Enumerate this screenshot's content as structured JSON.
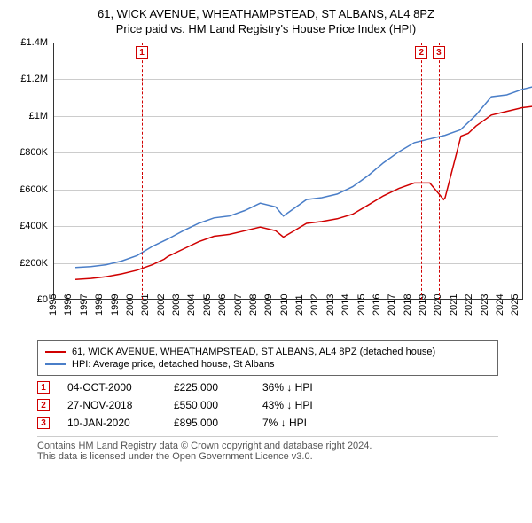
{
  "title": "61, WICK AVENUE, WHEATHAMPSTEAD, ST ALBANS, AL4 8PZ",
  "subtitle": "Price paid vs. HM Land Registry's House Price Index (HPI)",
  "chart": {
    "type": "line",
    "xlim": [
      1995,
      2025.5
    ],
    "ylim": [
      0,
      1400000
    ],
    "ytick_step": 200000,
    "ytick_labels": [
      "£0",
      "£200K",
      "£400K",
      "£600K",
      "£800K",
      "£1M",
      "£1.2M",
      "£1.4M"
    ],
    "xticks": [
      1995,
      1996,
      1997,
      1998,
      1999,
      2000,
      2001,
      2002,
      2003,
      2004,
      2005,
      2006,
      2007,
      2008,
      2009,
      2010,
      2011,
      2012,
      2013,
      2014,
      2015,
      2016,
      2017,
      2018,
      2019,
      2020,
      2021,
      2022,
      2023,
      2024,
      2025
    ],
    "grid_color": "#cccccc",
    "background_color": "#ffffff",
    "series": [
      {
        "name": "property",
        "label": "61, WICK AVENUE, WHEATHAMPSTEAD, ST ALBANS, AL4 8PZ (detached house)",
        "color": "#d00000",
        "line_width": 1.5,
        "points": [
          [
            1995,
            115000
          ],
          [
            1996,
            120000
          ],
          [
            1997,
            130000
          ],
          [
            1998,
            145000
          ],
          [
            1999,
            165000
          ],
          [
            2000,
            195000
          ],
          [
            2000.76,
            225000
          ],
          [
            2001,
            240000
          ],
          [
            2002,
            280000
          ],
          [
            2003,
            320000
          ],
          [
            2004,
            350000
          ],
          [
            2005,
            360000
          ],
          [
            2006,
            380000
          ],
          [
            2007,
            400000
          ],
          [
            2008,
            380000
          ],
          [
            2008.5,
            345000
          ],
          [
            2009,
            370000
          ],
          [
            2010,
            420000
          ],
          [
            2011,
            430000
          ],
          [
            2012,
            445000
          ],
          [
            2013,
            470000
          ],
          [
            2014,
            520000
          ],
          [
            2015,
            570000
          ],
          [
            2016,
            610000
          ],
          [
            2017,
            640000
          ],
          [
            2018,
            640000
          ],
          [
            2018.9,
            550000
          ],
          [
            2019,
            560000
          ],
          [
            2020.03,
            895000
          ],
          [
            2020.5,
            910000
          ],
          [
            2021,
            950000
          ],
          [
            2022,
            1010000
          ],
          [
            2023,
            1030000
          ],
          [
            2024,
            1050000
          ],
          [
            2025,
            1060000
          ]
        ]
      },
      {
        "name": "hpi",
        "label": "HPI: Average price, detached house, St Albans",
        "color": "#4a7ec8",
        "line_width": 1.5,
        "points": [
          [
            1995,
            180000
          ],
          [
            1996,
            185000
          ],
          [
            1997,
            195000
          ],
          [
            1998,
            215000
          ],
          [
            1999,
            245000
          ],
          [
            2000,
            295000
          ],
          [
            2001,
            335000
          ],
          [
            2002,
            380000
          ],
          [
            2003,
            420000
          ],
          [
            2004,
            450000
          ],
          [
            2005,
            460000
          ],
          [
            2006,
            490000
          ],
          [
            2007,
            530000
          ],
          [
            2008,
            510000
          ],
          [
            2008.5,
            460000
          ],
          [
            2009,
            490000
          ],
          [
            2010,
            550000
          ],
          [
            2011,
            560000
          ],
          [
            2012,
            580000
          ],
          [
            2013,
            620000
          ],
          [
            2014,
            680000
          ],
          [
            2015,
            750000
          ],
          [
            2016,
            810000
          ],
          [
            2017,
            860000
          ],
          [
            2018,
            880000
          ],
          [
            2019,
            900000
          ],
          [
            2020,
            930000
          ],
          [
            2021,
            1010000
          ],
          [
            2022,
            1110000
          ],
          [
            2023,
            1120000
          ],
          [
            2024,
            1150000
          ],
          [
            2025,
            1170000
          ]
        ]
      }
    ],
    "markers": [
      {
        "id": "1",
        "x": 2000.76,
        "y": 225000
      },
      {
        "id": "2",
        "x": 2018.9,
        "y": 550000
      },
      {
        "id": "3",
        "x": 2020.03,
        "y": 895000
      }
    ]
  },
  "events": [
    {
      "id": "1",
      "date": "04-OCT-2000",
      "price": "£225,000",
      "diff": "36% ↓ HPI"
    },
    {
      "id": "2",
      "date": "27-NOV-2018",
      "price": "£550,000",
      "diff": "43% ↓ HPI"
    },
    {
      "id": "3",
      "date": "10-JAN-2020",
      "price": "£895,000",
      "diff": "7% ↓ HPI"
    }
  ],
  "footer": {
    "line1": "Contains HM Land Registry data © Crown copyright and database right 2024.",
    "line2": "This data is licensed under the Open Government Licence v3.0."
  }
}
